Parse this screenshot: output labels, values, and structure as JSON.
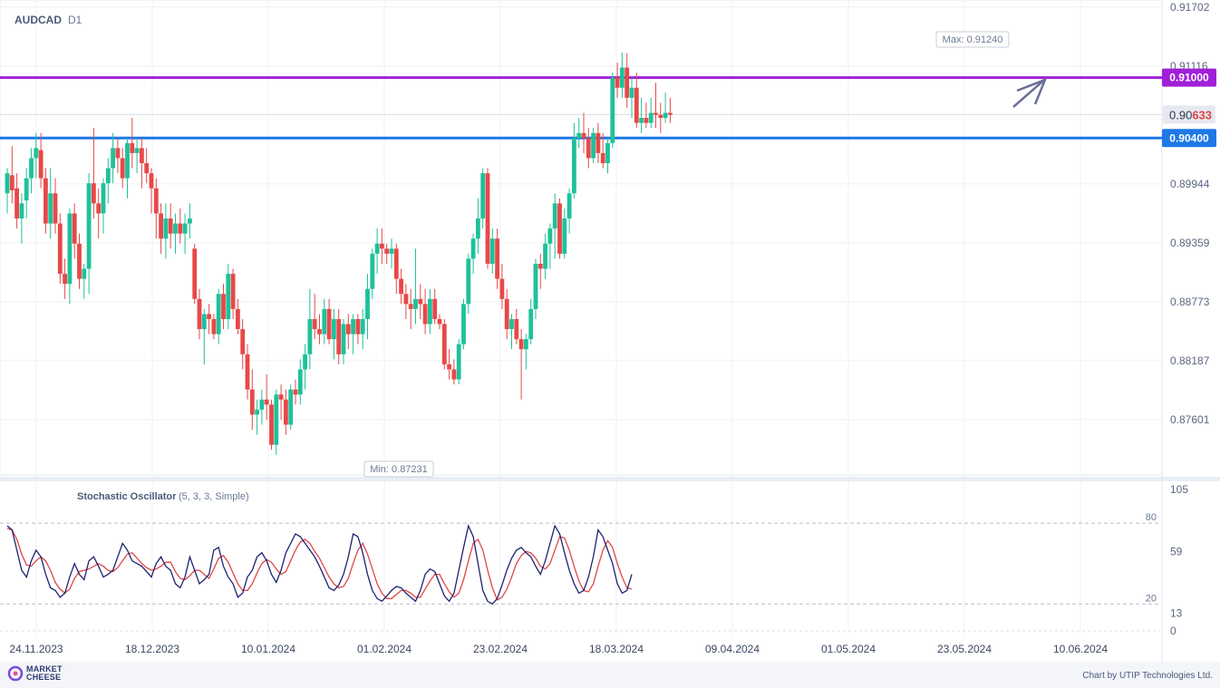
{
  "chart_data": {
    "type": "candlestick",
    "symbol": "AUDCAD",
    "timeframe": "D1",
    "ylim": [
      0.8705,
      0.917
    ],
    "yticks": [
      0.91702,
      0.91116,
      0.89944,
      0.89359,
      0.88773,
      0.88187,
      0.87601
    ],
    "xtick_labels": [
      "24.11.2023",
      "18.12.2023",
      "10.01.2024",
      "01.02.2024",
      "23.02.2024",
      "18.03.2024",
      "09.04.2024",
      "01.05.2024",
      "23.05.2024",
      "10.06.2024"
    ],
    "max_label": "Max: 0.91240",
    "min_label": "Min: 0.87231",
    "current_price": {
      "prefix": "0.90",
      "suffix": "633",
      "value": 0.90633
    },
    "levels": [
      {
        "value": 0.91,
        "label": "0.91000",
        "color": "#a020d8"
      },
      {
        "value": 0.904,
        "label": "0.90400",
        "color": "#1e78e6"
      }
    ],
    "candles": [
      [
        0.8985,
        0.901,
        0.8965,
        0.9005
      ],
      [
        0.9003,
        0.9032,
        0.8975,
        0.8988
      ],
      [
        0.899,
        0.9005,
        0.895,
        0.896
      ],
      [
        0.896,
        0.8985,
        0.8935,
        0.8975
      ],
      [
        0.8978,
        0.901,
        0.896,
        0.9
      ],
      [
        0.9,
        0.903,
        0.8985,
        0.902
      ],
      [
        0.902,
        0.9045,
        0.9,
        0.903
      ],
      [
        0.9028,
        0.9045,
        0.899,
        0.9
      ],
      [
        0.9,
        0.901,
        0.8945,
        0.8955
      ],
      [
        0.8955,
        0.901,
        0.894,
        0.8985
      ],
      [
        0.8985,
        0.9,
        0.8945,
        0.8955
      ],
      [
        0.8955,
        0.8965,
        0.8895,
        0.8905
      ],
      [
        0.8905,
        0.892,
        0.888,
        0.8895
      ],
      [
        0.8895,
        0.897,
        0.8875,
        0.8965
      ],
      [
        0.8965,
        0.8975,
        0.892,
        0.8935
      ],
      [
        0.8935,
        0.8945,
        0.889,
        0.89
      ],
      [
        0.89,
        0.8915,
        0.888,
        0.891
      ],
      [
        0.891,
        0.9005,
        0.8885,
        0.8995
      ],
      [
        0.8995,
        0.905,
        0.896,
        0.8975
      ],
      [
        0.8975,
        0.899,
        0.894,
        0.8965
      ],
      [
        0.8965,
        0.9,
        0.8945,
        0.8995
      ],
      [
        0.8995,
        0.902,
        0.8975,
        0.901
      ],
      [
        0.901,
        0.9045,
        0.8995,
        0.903
      ],
      [
        0.903,
        0.904,
        0.9005,
        0.902
      ],
      [
        0.902,
        0.903,
        0.899,
        0.9
      ],
      [
        0.9,
        0.904,
        0.898,
        0.9035
      ],
      [
        0.9035,
        0.906,
        0.901,
        0.9025
      ],
      [
        0.9025,
        0.904,
        0.9005,
        0.903
      ],
      [
        0.903,
        0.904,
        0.899,
        0.9015
      ],
      [
        0.9015,
        0.903,
        0.8995,
        0.9005
      ],
      [
        0.9005,
        0.901,
        0.8965,
        0.899
      ],
      [
        0.899,
        0.9,
        0.894,
        0.8965
      ],
      [
        0.8965,
        0.8975,
        0.8925,
        0.894
      ],
      [
        0.894,
        0.8975,
        0.892,
        0.896
      ],
      [
        0.896,
        0.8975,
        0.893,
        0.8945
      ],
      [
        0.8945,
        0.8965,
        0.8925,
        0.8955
      ],
      [
        0.8955,
        0.897,
        0.8935,
        0.8945
      ],
      [
        0.8945,
        0.8965,
        0.8925,
        0.8955
      ],
      [
        0.8955,
        0.8975,
        0.894,
        0.896
      ],
      [
        0.893,
        0.8935,
        0.8875,
        0.888
      ],
      [
        0.888,
        0.889,
        0.884,
        0.885
      ],
      [
        0.885,
        0.887,
        0.8815,
        0.8865
      ],
      [
        0.8865,
        0.8875,
        0.8845,
        0.886
      ],
      [
        0.886,
        0.8865,
        0.884,
        0.8845
      ],
      [
        0.8845,
        0.889,
        0.8835,
        0.8885
      ],
      [
        0.8885,
        0.8895,
        0.885,
        0.886
      ],
      [
        0.886,
        0.8915,
        0.885,
        0.8905
      ],
      [
        0.8905,
        0.891,
        0.886,
        0.887
      ],
      [
        0.887,
        0.888,
        0.8845,
        0.885
      ],
      [
        0.885,
        0.886,
        0.881,
        0.8825
      ],
      [
        0.8825,
        0.8835,
        0.878,
        0.879
      ],
      [
        0.879,
        0.881,
        0.875,
        0.8765
      ],
      [
        0.8765,
        0.878,
        0.8745,
        0.877
      ],
      [
        0.877,
        0.879,
        0.8755,
        0.878
      ],
      [
        0.878,
        0.8805,
        0.876,
        0.8775
      ],
      [
        0.8775,
        0.878,
        0.873,
        0.8735
      ],
      [
        0.8735,
        0.879,
        0.8725,
        0.8785
      ],
      [
        0.8785,
        0.8795,
        0.876,
        0.878
      ],
      [
        0.878,
        0.879,
        0.8745,
        0.8755
      ],
      [
        0.8755,
        0.8795,
        0.875,
        0.879
      ],
      [
        0.879,
        0.88,
        0.8775,
        0.8785
      ],
      [
        0.8785,
        0.882,
        0.8775,
        0.881
      ],
      [
        0.881,
        0.8835,
        0.879,
        0.8825
      ],
      [
        0.8825,
        0.889,
        0.881,
        0.886
      ],
      [
        0.886,
        0.8885,
        0.884,
        0.885
      ],
      [
        0.885,
        0.8865,
        0.8835,
        0.8845
      ],
      [
        0.8845,
        0.888,
        0.8835,
        0.887
      ],
      [
        0.887,
        0.888,
        0.8835,
        0.884
      ],
      [
        0.884,
        0.887,
        0.882,
        0.886
      ],
      [
        0.886,
        0.887,
        0.8815,
        0.8825
      ],
      [
        0.8825,
        0.886,
        0.8815,
        0.8855
      ],
      [
        0.8855,
        0.8865,
        0.883,
        0.8845
      ],
      [
        0.8845,
        0.8865,
        0.8825,
        0.886
      ],
      [
        0.886,
        0.8865,
        0.8835,
        0.8845
      ],
      [
        0.8845,
        0.887,
        0.883,
        0.886
      ],
      [
        0.886,
        0.8905,
        0.884,
        0.889
      ],
      [
        0.889,
        0.893,
        0.888,
        0.8925
      ],
      [
        0.8925,
        0.895,
        0.8905,
        0.8935
      ],
      [
        0.8935,
        0.895,
        0.8915,
        0.893
      ],
      [
        0.893,
        0.8935,
        0.8915,
        0.8925
      ],
      [
        0.8925,
        0.894,
        0.891,
        0.893
      ],
      [
        0.893,
        0.8935,
        0.8885,
        0.89
      ],
      [
        0.89,
        0.891,
        0.8875,
        0.8885
      ],
      [
        0.8885,
        0.8895,
        0.886,
        0.8875
      ],
      [
        0.8875,
        0.889,
        0.885,
        0.887
      ],
      [
        0.887,
        0.893,
        0.8855,
        0.888
      ],
      [
        0.888,
        0.8895,
        0.886,
        0.8875
      ],
      [
        0.8875,
        0.889,
        0.8845,
        0.8855
      ],
      [
        0.8855,
        0.889,
        0.8845,
        0.888
      ],
      [
        0.888,
        0.889,
        0.8855,
        0.886
      ],
      [
        0.886,
        0.8865,
        0.885,
        0.8855
      ],
      [
        0.8855,
        0.886,
        0.881,
        0.8815
      ],
      [
        0.8815,
        0.883,
        0.88,
        0.881
      ],
      [
        0.881,
        0.882,
        0.8795,
        0.88
      ],
      [
        0.88,
        0.884,
        0.8795,
        0.8835
      ],
      [
        0.8835,
        0.888,
        0.883,
        0.8875
      ],
      [
        0.8875,
        0.8925,
        0.8865,
        0.892
      ],
      [
        0.892,
        0.8945,
        0.8905,
        0.894
      ],
      [
        0.894,
        0.898,
        0.8925,
        0.896
      ],
      [
        0.896,
        0.901,
        0.895,
        0.9005
      ],
      [
        0.9005,
        0.901,
        0.891,
        0.8915
      ],
      [
        0.8915,
        0.895,
        0.8905,
        0.894
      ],
      [
        0.894,
        0.895,
        0.889,
        0.89
      ],
      [
        0.89,
        0.8915,
        0.887,
        0.888
      ],
      [
        0.888,
        0.889,
        0.884,
        0.885
      ],
      [
        0.885,
        0.8865,
        0.883,
        0.886
      ],
      [
        0.886,
        0.887,
        0.8835,
        0.884
      ],
      [
        0.884,
        0.885,
        0.878,
        0.883
      ],
      [
        0.883,
        0.8845,
        0.881,
        0.884
      ],
      [
        0.884,
        0.888,
        0.8835,
        0.887
      ],
      [
        0.887,
        0.892,
        0.886,
        0.8915
      ],
      [
        0.8915,
        0.8925,
        0.889,
        0.891
      ],
      [
        0.891,
        0.8945,
        0.89,
        0.8935
      ],
      [
        0.8935,
        0.8955,
        0.891,
        0.895
      ],
      [
        0.895,
        0.8985,
        0.892,
        0.8975
      ],
      [
        0.8975,
        0.898,
        0.892,
        0.8925
      ],
      [
        0.8925,
        0.897,
        0.892,
        0.896
      ],
      [
        0.896,
        0.899,
        0.8945,
        0.8985
      ],
      [
        0.8985,
        0.9055,
        0.898,
        0.904
      ],
      [
        0.904,
        0.906,
        0.903,
        0.9045
      ],
      [
        0.9045,
        0.9065,
        0.9025,
        0.904
      ],
      [
        0.904,
        0.905,
        0.901,
        0.902
      ],
      [
        0.902,
        0.905,
        0.9015,
        0.9045
      ],
      [
        0.9045,
        0.9055,
        0.9015,
        0.9025
      ],
      [
        0.9025,
        0.9045,
        0.901,
        0.9015
      ],
      [
        0.9015,
        0.904,
        0.9005,
        0.9035
      ],
      [
        0.9035,
        0.9105,
        0.903,
        0.91
      ],
      [
        0.91,
        0.9115,
        0.908,
        0.909
      ],
      [
        0.909,
        0.9125,
        0.908,
        0.911
      ],
      [
        0.911,
        0.9124,
        0.907,
        0.908
      ],
      [
        0.908,
        0.91,
        0.906,
        0.909
      ],
      [
        0.909,
        0.9105,
        0.905,
        0.9055
      ],
      [
        0.9055,
        0.908,
        0.9045,
        0.906
      ],
      [
        0.906,
        0.9075,
        0.905,
        0.9055
      ],
      [
        0.9055,
        0.908,
        0.905,
        0.9065
      ],
      [
        0.9065,
        0.9095,
        0.905,
        0.9063
      ],
      [
        0.9063,
        0.9075,
        0.9045,
        0.906
      ],
      [
        0.906,
        0.9085,
        0.9055,
        0.9065
      ],
      [
        0.9065,
        0.908,
        0.9055,
        0.9063
      ]
    ],
    "oscillator": {
      "title": "Stochastic Oscillator",
      "params": "(5, 3, 3, Simple)",
      "ylim": [
        0,
        105
      ],
      "yticks": [
        105,
        59,
        13,
        0
      ],
      "levels": [
        80,
        20
      ],
      "k": [
        78,
        75,
        60,
        45,
        40,
        52,
        60,
        55,
        42,
        32,
        30,
        25,
        28,
        40,
        50,
        42,
        38,
        52,
        55,
        48,
        40,
        42,
        45,
        55,
        65,
        60,
        52,
        50,
        48,
        44,
        40,
        50,
        55,
        48,
        45,
        35,
        32,
        40,
        55,
        45,
        35,
        38,
        42,
        60,
        62,
        48,
        40,
        35,
        25,
        28,
        40,
        45,
        55,
        58,
        52,
        42,
        36,
        45,
        58,
        65,
        72,
        70,
        65,
        60,
        55,
        48,
        40,
        32,
        30,
        34,
        42,
        55,
        72,
        70,
        58,
        42,
        30,
        24,
        22,
        26,
        30,
        33,
        32,
        28,
        25,
        22,
        30,
        42,
        46,
        44,
        35,
        26,
        22,
        28,
        45,
        62,
        78,
        70,
        50,
        30,
        22,
        20,
        24,
        34,
        45,
        54,
        60,
        62,
        58,
        55,
        48,
        42,
        52,
        65,
        78,
        72,
        58,
        45,
        35,
        28,
        30,
        40,
        55,
        75,
        70,
        60,
        50,
        35,
        28,
        30,
        42
      ],
      "d": [
        76,
        75,
        68,
        57,
        49,
        48,
        52,
        55,
        52,
        45,
        36,
        31,
        28,
        31,
        39,
        44,
        45,
        46,
        48,
        50,
        48,
        45,
        44,
        47,
        52,
        57,
        58,
        54,
        50,
        47,
        45,
        46,
        48,
        51,
        51,
        44,
        39,
        38,
        41,
        45,
        45,
        42,
        39,
        46,
        54,
        56,
        51,
        43,
        35,
        30,
        30,
        35,
        43,
        50,
        53,
        51,
        46,
        42,
        44,
        52,
        60,
        66,
        68,
        65,
        59,
        54,
        47,
        40,
        35,
        32,
        33,
        39,
        50,
        60,
        65,
        57,
        46,
        35,
        28,
        24,
        24,
        27,
        30,
        30,
        28,
        25,
        25,
        31,
        37,
        42,
        42,
        35,
        29,
        25,
        28,
        38,
        52,
        65,
        68,
        60,
        45,
        32,
        23,
        25,
        31,
        40,
        50,
        56,
        59,
        58,
        54,
        48,
        46,
        50,
        60,
        70,
        69,
        60,
        48,
        37,
        30,
        29,
        35,
        48,
        60,
        67,
        62,
        50,
        40,
        32,
        31
      ]
    }
  },
  "branding": {
    "logo_line1": "MARKET",
    "logo_line2": "CHEESE",
    "credit": "Chart by UTIP Technologies Ltd."
  }
}
